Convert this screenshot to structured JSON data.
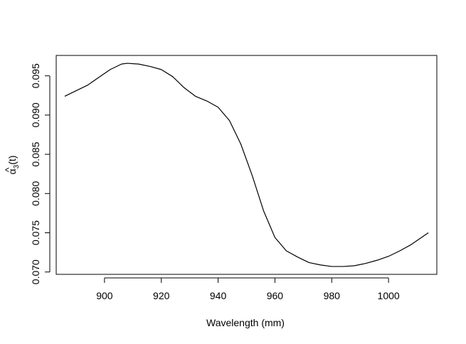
{
  "chart_data": {
    "type": "line",
    "title": "",
    "xlabel": "Wavelength (mm)",
    "ylabel": {
      "base": "α",
      "hat": "^",
      "sub": "3",
      "rest": "(t)"
    },
    "xlim": [
      883,
      1017
    ],
    "ylim": [
      0.0697,
      0.0976
    ],
    "xticks": [
      {
        "value": 900,
        "label": "900"
      },
      {
        "value": 920,
        "label": "920"
      },
      {
        "value": 940,
        "label": "940"
      },
      {
        "value": 960,
        "label": "960"
      },
      {
        "value": 980,
        "label": "980"
      },
      {
        "value": 1000,
        "label": "1000"
      }
    ],
    "yticks": [
      {
        "value": 0.07,
        "label": "0.070"
      },
      {
        "value": 0.075,
        "label": "0.075"
      },
      {
        "value": 0.08,
        "label": "0.080"
      },
      {
        "value": 0.085,
        "label": "0.085"
      },
      {
        "value": 0.09,
        "label": "0.090"
      },
      {
        "value": 0.095,
        "label": "0.095"
      }
    ],
    "grid": false,
    "series": [
      {
        "color": "#000000",
        "x": [
          886,
          890,
          894,
          898,
          902,
          906,
          908,
          912,
          916,
          920,
          924,
          928,
          932,
          936,
          940,
          944,
          948,
          952,
          956,
          960,
          964,
          968,
          972,
          976,
          980,
          984,
          988,
          992,
          996,
          1000,
          1004,
          1008,
          1012,
          1014
        ],
        "y": [
          0.0924,
          0.0931,
          0.0938,
          0.0948,
          0.0958,
          0.0965,
          0.0966,
          0.0965,
          0.0962,
          0.0958,
          0.0949,
          0.0935,
          0.0924,
          0.0918,
          0.091,
          0.0893,
          0.0863,
          0.0823,
          0.0778,
          0.0744,
          0.0727,
          0.0719,
          0.0712,
          0.0709,
          0.0707,
          0.0707,
          0.0708,
          0.0711,
          0.0715,
          0.072,
          0.0727,
          0.0735,
          0.0745,
          0.075
        ]
      }
    ]
  }
}
